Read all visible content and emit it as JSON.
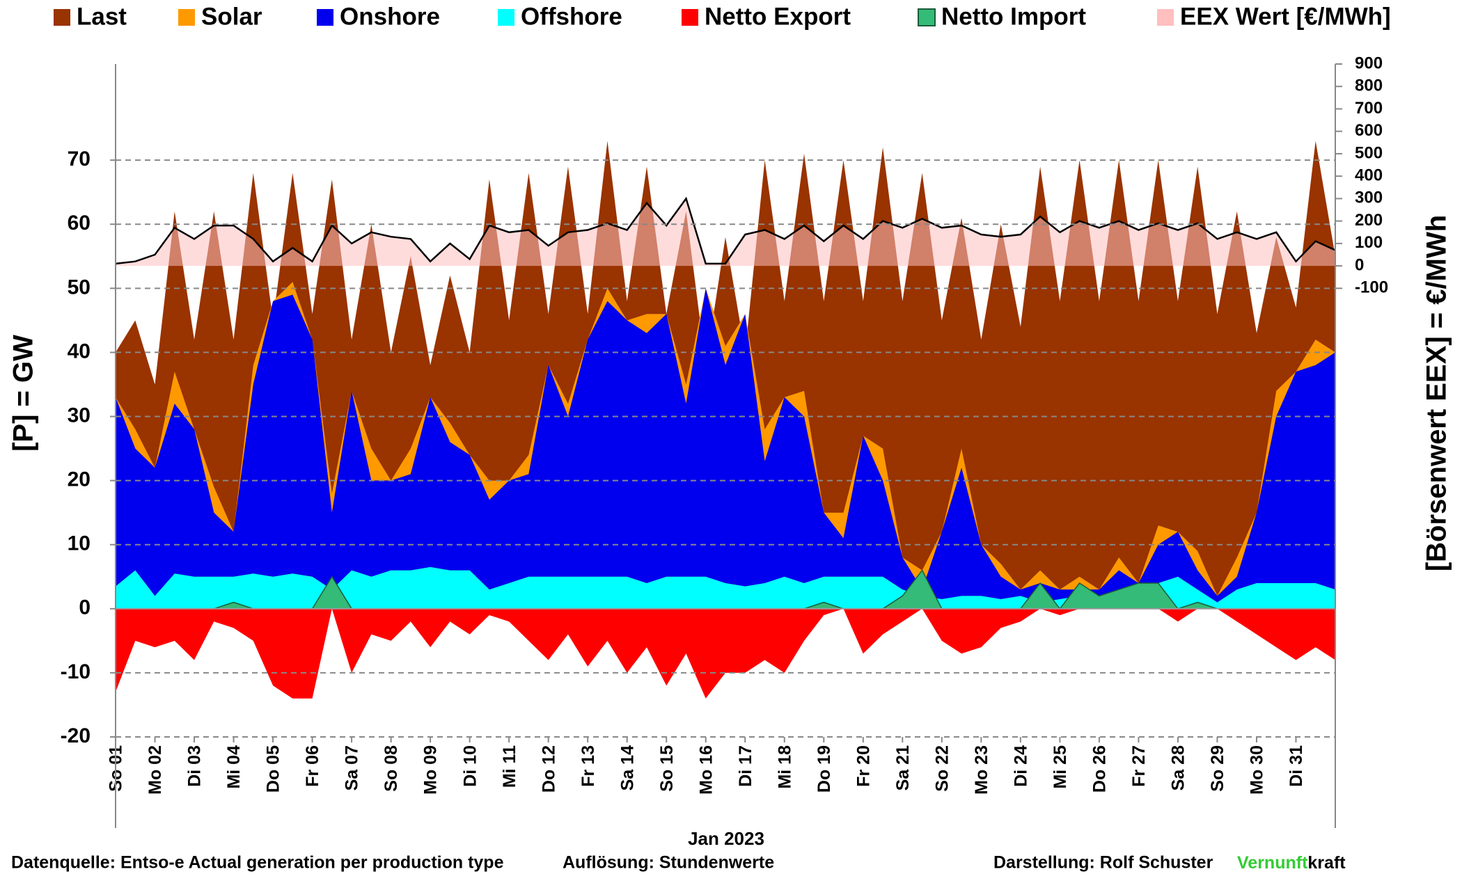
{
  "chart_data": {
    "type": "area",
    "x_label": "Jan 2023",
    "y_label": "[P]  =  GW",
    "y2_label": "[Börsenwert  EEX]  =  €/MWh",
    "footer": {
      "source": "Datenquelle: Entso-e  Actual generation per production type",
      "resolution": "Auflösung: Stundenwerte",
      "author": "Darstellung:  Rolf Schuster",
      "brand_1": "Vernunft",
      "brand_2": "kraft"
    },
    "x": [
      0,
      0.5,
      1,
      1.5,
      2,
      2.5,
      3,
      3.5,
      4,
      4.5,
      5,
      5.5,
      6,
      6.5,
      7,
      7.5,
      8,
      8.5,
      9,
      9.5,
      10,
      10.5,
      11,
      11.5,
      12,
      12.5,
      13,
      13.5,
      14,
      14.5,
      15,
      15.5,
      16,
      16.5,
      17,
      17.5,
      18,
      18.5,
      19,
      19.5,
      20,
      20.5,
      21,
      21.5,
      22,
      22.5,
      23,
      23.5,
      24,
      24.5,
      25,
      25.5,
      26,
      26.5,
      27,
      27.5,
      28,
      28.5,
      29,
      29.5,
      30,
      30.5,
      31
    ],
    "xlim": [
      0,
      31
    ],
    "xticks": [
      {
        "value": 0,
        "label": "So 01"
      },
      {
        "value": 1,
        "label": "Mo 02"
      },
      {
        "value": 2,
        "label": "Di 03"
      },
      {
        "value": 3,
        "label": "Mi 04"
      },
      {
        "value": 4,
        "label": "Do 05"
      },
      {
        "value": 5,
        "label": "Fr 06"
      },
      {
        "value": 6,
        "label": "Sa 07"
      },
      {
        "value": 7,
        "label": "So 08"
      },
      {
        "value": 8,
        "label": "Mo 09"
      },
      {
        "value": 9,
        "label": "Di 10"
      },
      {
        "value": 10,
        "label": "Mi 11"
      },
      {
        "value": 11,
        "label": "Do 12"
      },
      {
        "value": 12,
        "label": "Fr 13"
      },
      {
        "value": 13,
        "label": "Sa 14"
      },
      {
        "value": 14,
        "label": "So 15"
      },
      {
        "value": 15,
        "label": "Mo 16"
      },
      {
        "value": 16,
        "label": "Di 17"
      },
      {
        "value": 17,
        "label": "Mi 18"
      },
      {
        "value": 18,
        "label": "Do 19"
      },
      {
        "value": 19,
        "label": "Fr 20"
      },
      {
        "value": 20,
        "label": "Sa 21"
      },
      {
        "value": 21,
        "label": "So 22"
      },
      {
        "value": 22,
        "label": "Mo 23"
      },
      {
        "value": 23,
        "label": "Di 24"
      },
      {
        "value": 24,
        "label": "Mi 25"
      },
      {
        "value": 25,
        "label": "Do 26"
      },
      {
        "value": 26,
        "label": "Fr 27"
      },
      {
        "value": 27,
        "label": "Sa 28"
      },
      {
        "value": 28,
        "label": "So 29"
      },
      {
        "value": 29,
        "label": "Mo 30"
      },
      {
        "value": 30,
        "label": "Di 31"
      }
    ],
    "ylim": [
      -20,
      85
    ],
    "yticks": [
      -20,
      -10,
      0,
      10,
      20,
      30,
      40,
      50,
      60,
      70
    ],
    "y2lim": [
      -2100,
      900
    ],
    "y2ticks": [
      -100,
      0,
      100,
      200,
      300,
      400,
      500,
      600,
      700,
      800,
      900
    ],
    "grid": true,
    "negative_tick_color": "#ff0000",
    "series": [
      {
        "name": "Last",
        "color": "#993300",
        "values": [
          40,
          45,
          35,
          62,
          42,
          62,
          42,
          68,
          45,
          68,
          46,
          67,
          42,
          60,
          40,
          55,
          38,
          52,
          40,
          67,
          45,
          68,
          46,
          69,
          46,
          73,
          48,
          69,
          46,
          62,
          38,
          58,
          40,
          70,
          48,
          71,
          48,
          70,
          48,
          72,
          48,
          68,
          45,
          61,
          42,
          60,
          44,
          69,
          48,
          70,
          48,
          70,
          48,
          70,
          48,
          69,
          46,
          62,
          43,
          58,
          47,
          73,
          55
        ]
      },
      {
        "name": "Solar",
        "color": "#ff9900",
        "stacked": true,
        "values": [
          0,
          3,
          0,
          5,
          0,
          4,
          0,
          3,
          0,
          2,
          0,
          3,
          0,
          5,
          0,
          4,
          0,
          3,
          0,
          3,
          0,
          3,
          0,
          2,
          0,
          2,
          0,
          3,
          0,
          3,
          0,
          3,
          0,
          5,
          0,
          4,
          0,
          4,
          0,
          5,
          0,
          3,
          0,
          3,
          0,
          2,
          0,
          2,
          0,
          2,
          0,
          2,
          0,
          3,
          0,
          3,
          0,
          3,
          0,
          4,
          0,
          4,
          0
        ]
      },
      {
        "name": "Onshore",
        "color": "#0000ee",
        "stacked": true,
        "values": [
          29.5,
          19,
          20,
          26.5,
          23,
          10,
          7,
          29.5,
          43,
          43.5,
          37,
          12,
          28,
          15,
          14,
          15,
          26.5,
          20,
          18,
          14,
          16,
          16,
          33,
          25,
          37,
          43,
          40,
          39,
          41,
          27,
          45,
          34,
          42.5,
          19,
          28,
          26,
          10,
          6,
          22,
          15,
          5,
          1,
          10.5,
          20,
          8,
          3.5,
          1,
          3,
          1.5,
          1,
          1,
          4,
          2,
          6,
          7,
          3,
          1,
          2,
          11,
          26,
          33,
          34,
          37
        ]
      },
      {
        "name": "Offshore",
        "color": "#00ffff",
        "stacked": true,
        "values": [
          3.5,
          6,
          2,
          5.5,
          5,
          5,
          5,
          5.5,
          5,
          5.5,
          5,
          3,
          6,
          5,
          6,
          6,
          6.5,
          6,
          6,
          3,
          4,
          5,
          5,
          5,
          5,
          5,
          5,
          4,
          5,
          5,
          5,
          4,
          3.5,
          4,
          5,
          4,
          5,
          5,
          5,
          5,
          3,
          2,
          1.5,
          2,
          2,
          1.5,
          2,
          1,
          1.5,
          2,
          2,
          2,
          2,
          4,
          5,
          3,
          1,
          3,
          4,
          4,
          4,
          4,
          3
        ]
      },
      {
        "name": "Netto Export",
        "color": "#ff0000",
        "values": [
          -13,
          -5,
          -6,
          -5,
          -8,
          -2,
          -3,
          -5,
          -12,
          -14,
          -14,
          0,
          -10,
          -4,
          -5,
          -2,
          -6,
          -2,
          -4,
          -1,
          -2,
          -5,
          -8,
          -4,
          -9,
          -5,
          -10,
          -6,
          -12,
          -7,
          -14,
          -10,
          -10,
          -8,
          -10,
          -5,
          -1,
          0,
          -7,
          -4,
          -2,
          0,
          -5,
          -7,
          -6,
          -3,
          -2,
          0,
          -1,
          0,
          0,
          0,
          0,
          0,
          -2,
          0,
          0,
          -2,
          -4,
          -6,
          -8,
          -6,
          -8
        ]
      },
      {
        "name": "Netto Import",
        "color": "#33bb77",
        "line_color": "#1a5c3a",
        "values": [
          0,
          0,
          0,
          0,
          0,
          0,
          1,
          0,
          0,
          0,
          0,
          5,
          0,
          0,
          0,
          0,
          0,
          0,
          0,
          0,
          0,
          0,
          0,
          0,
          0,
          0,
          0,
          0,
          0,
          0,
          0,
          0,
          0,
          0,
          0,
          0,
          1,
          0,
          0,
          0,
          2,
          6,
          0,
          0,
          0,
          0,
          0,
          4,
          0,
          4,
          2,
          3,
          4,
          4,
          0,
          1,
          0,
          0,
          0,
          0,
          0,
          0,
          0
        ]
      },
      {
        "name": "EEX Wert [€/MWh]",
        "color": "#ffbfbf",
        "line_color": "#000000",
        "axis": "y2",
        "values": [
          10,
          20,
          50,
          170,
          120,
          180,
          180,
          120,
          20,
          80,
          20,
          180,
          100,
          150,
          130,
          120,
          20,
          100,
          30,
          180,
          150,
          160,
          90,
          150,
          160,
          190,
          160,
          280,
          180,
          300,
          10,
          10,
          140,
          160,
          120,
          180,
          110,
          180,
          120,
          200,
          170,
          210,
          170,
          180,
          140,
          130,
          140,
          220,
          150,
          200,
          170,
          200,
          160,
          190,
          160,
          190,
          120,
          150,
          120,
          150,
          20,
          110,
          70
        ]
      }
    ]
  }
}
